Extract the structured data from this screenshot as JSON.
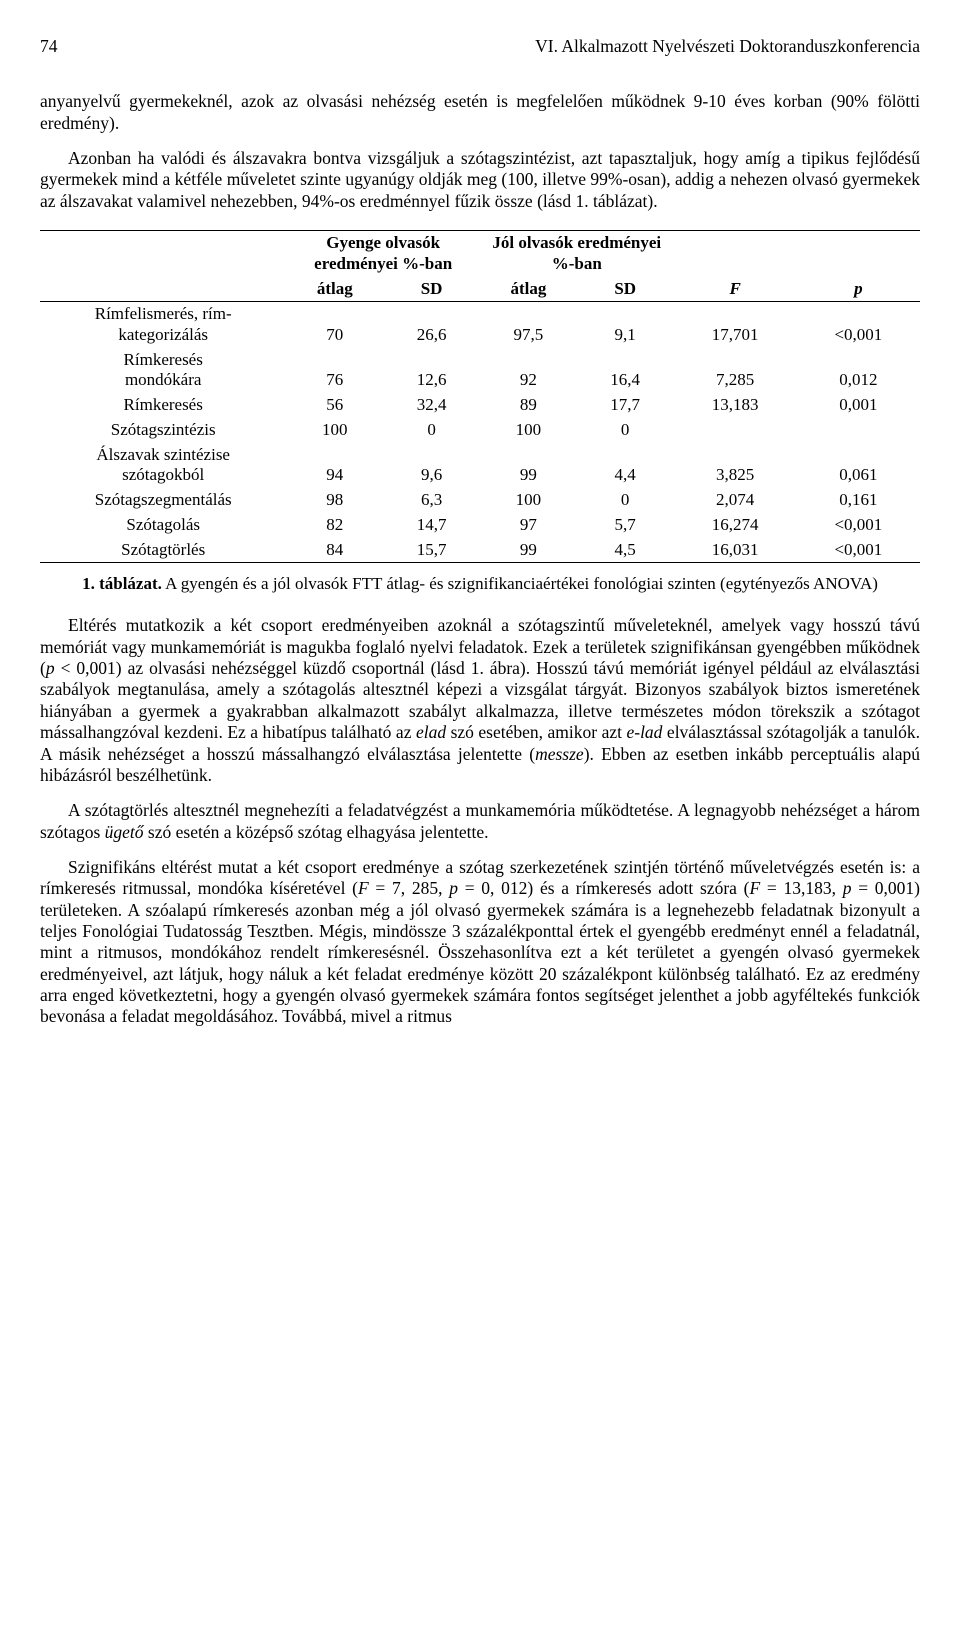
{
  "header": {
    "pagenum": "74",
    "runtitle": "VI. Alkalmazott Nyelvészeti Doktoranduszkonferencia"
  },
  "para1": "anyanyelvű gyermekeknél, azok az olvasási nehézség esetén is megfelelően működnek 9-10 éves korban (90% fölötti eredmény).",
  "para2": "Azonban ha valódi és álszavakra bontva vizsgáljuk a szótagszintézist, azt tapasztaljuk, hogy amíg a tipikus fejlődésű gyermekek mind a kétféle műveletet szinte ugyanúgy oldják meg (100, illetve 99%-osan), addig a nehezen olvasó gyermekek az álszavakat valamivel nehezebben, 94%-os eredménnyel fűzik össze (lásd 1. táblázat).",
  "table": {
    "head": {
      "group1": "Gyenge olvasók eredményei %-ban",
      "group2": "Jól olvasók eredményei %-ban",
      "c_atlag": "átlag",
      "c_sd": "SD",
      "c_F": "F",
      "c_p": "p"
    },
    "rows": [
      {
        "label": "Rímfelismerés, rím-\nkategorizálás",
        "a": "70",
        "b": "26,6",
        "c": "97,5",
        "d": "9,1",
        "F": "17,701",
        "p": "<0,001"
      },
      {
        "label": "Rímkeresés\nmondókára",
        "a": "76",
        "b": "12,6",
        "c": "92",
        "d": "16,4",
        "F": "7,285",
        "p": "0,012"
      },
      {
        "label": "Rímkeresés",
        "a": "56",
        "b": "32,4",
        "c": "89",
        "d": "17,7",
        "F": "13,183",
        "p": "0,001"
      },
      {
        "label": "Szótagszintézis",
        "a": "100",
        "b": "0",
        "c": "100",
        "d": "0",
        "F": "",
        "p": ""
      },
      {
        "label": "Álszavak szintézise\nszótagokból",
        "a": "94",
        "b": "9,6",
        "c": "99",
        "d": "4,4",
        "F": "3,825",
        "p": "0,061"
      },
      {
        "label": "Szótagszegmentálás",
        "a": "98",
        "b": "6,3",
        "c": "100",
        "d": "0",
        "F": "2,074",
        "p": "0,161"
      },
      {
        "label": "Szótagolás",
        "a": "82",
        "b": "14,7",
        "c": "97",
        "d": "5,7",
        "F": "16,274",
        "p": "<0,001"
      },
      {
        "label": "Szótagtörlés",
        "a": "84",
        "b": "15,7",
        "c": "99",
        "d": "4,5",
        "F": "16,031",
        "p": "<0,001"
      }
    ]
  },
  "caption_bold": "1. táblázat.",
  "caption_rest": " A gyengén és a jól olvasók FTT átlag- és szignifikanciaértékei fonológiai szinten (egytényezős ANOVA)",
  "body": {
    "p3a": "Eltérés mutatkozik a két csoport eredményeiben azoknál a szótagszintű műveleteknél, amelyek vagy hosszú távú memóriát vagy munkamemóriát is magukba foglaló nyelvi feladatok. Ezek a területek szignifikánsan gyengébben működnek (",
    "p3b": "p",
    "p3c": " < 0,001) az olvasási nehézséggel küzdő csoportnál (lásd 1. ábra). Hosszú távú memóriát igényel például az elválasztási szabályok megtanulása, amely a szótagolás altesztnél képezi a vizsgálat tárgyát. Bizonyos szabályok biztos ismeretének hiányában a gyermek a gyakrabban alkalmazott szabályt alkalmazza, illetve természetes módon törekszik a szótagot mássalhangzóval kezdeni. Ez a hibatípus található az ",
    "p3d": "elad",
    "p3e": " szó esetében, amikor azt ",
    "p3f": "e-lad",
    "p3g": " elválasztással szótagolják a tanulók. A másik nehézséget a hosszú mássalhangzó elválasztása jelentette (",
    "p3h": "messze",
    "p3i": "). Ebben az esetben inkább perceptuális alapú hibázásról beszélhetünk.",
    "p4a": "A szótagtörlés altesztnél megnehezíti a feladatvégzést a munkamemória működtetése. A legnagyobb nehézséget a három szótagos ",
    "p4b": "ügető",
    "p4c": " szó esetén a középső szótag elhagyása jelentette.",
    "p5a": "Szignifikáns eltérést mutat a két csoport eredménye a szótag szerkezetének szintjén történő műveletvégzés esetén is: a rímkeresés ritmussal, mondóka kíséretével (",
    "p5b": "F",
    "p5c": " = 7, 285, ",
    "p5d": "p",
    "p5e": " = 0, 012) és a rímkeresés adott szóra (",
    "p5f": "F",
    "p5g": " = 13,183, ",
    "p5h": "p",
    "p5i": " = 0,001) területeken. A szóalapú rímkeresés azonban még a jól olvasó gyermekek számára is a legnehezebb feladatnak bizonyult a teljes Fonológiai Tudatosság Tesztben. Mégis, mindössze 3 százalékponttal értek el gyengébb eredményt ennél a feladatnál, mint a ritmusos, mondókához rendelt rímkeresésnél. Összehasonlítva ezt a két területet a gyengén olvasó gyermekek eredményeivel, azt látjuk, hogy náluk a két feladat eredménye között 20 százalékpont különbség található. Ez az eredmény arra enged következtetni, hogy a gyengén olvasó gyermekek számára fontos segítséget jelenthet a jobb agyféltekés funkciók bevonása a feladat megoldásához. Továbbá, mivel a ritmus"
  }
}
